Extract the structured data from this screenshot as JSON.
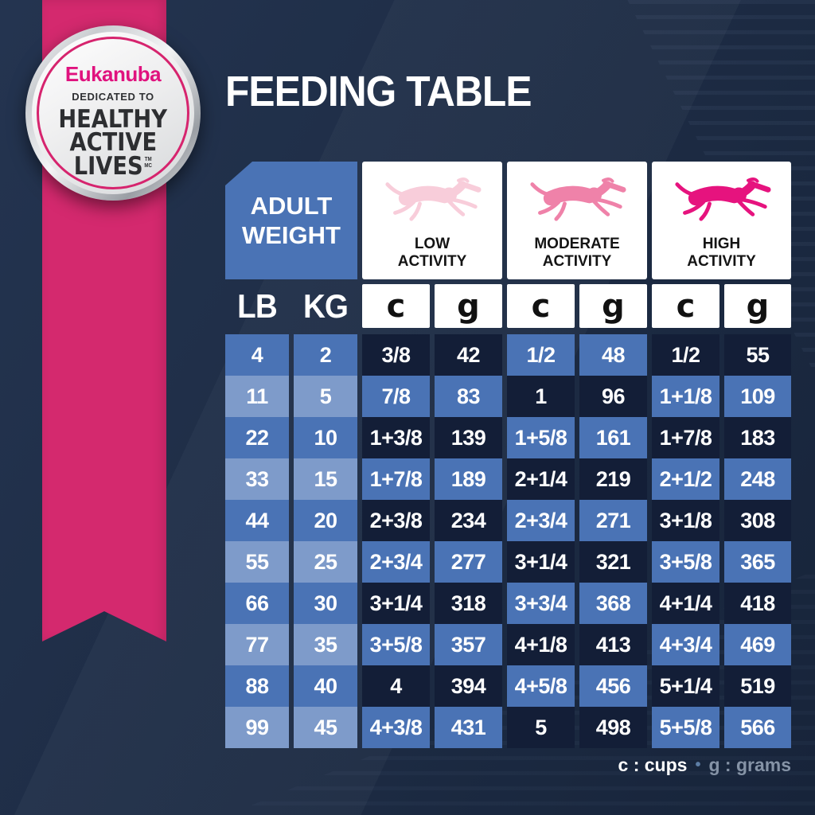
{
  "title": "FEEDING TABLE",
  "badge": {
    "brand": "Eukanuba",
    "tagline": "DEDICATED TO",
    "line1": "HEALTHY",
    "line2": "ACTIVE",
    "line3": "LIVES",
    "tm1": "TM",
    "tm2": "MC"
  },
  "table": {
    "adult_weight_label": "ADULT WEIGHT",
    "activities": [
      {
        "label": "LOW ACTIVITY",
        "dog_color": "#f8cdda"
      },
      {
        "label": "MODERATE ACTIVITY",
        "dog_color": "#ef82a9"
      },
      {
        "label": "HIGH ACTIVITY",
        "dog_color": "#e6137e"
      }
    ]
  },
  "chart_data": {
    "type": "table",
    "title": "FEEDING TABLE",
    "column_groups": [
      "ADULT WEIGHT",
      "LOW ACTIVITY",
      "MODERATE ACTIVITY",
      "HIGH ACTIVITY"
    ],
    "columns": [
      "LB",
      "KG",
      "c",
      "g",
      "c",
      "g",
      "c",
      "g"
    ],
    "rows": [
      [
        "4",
        "2",
        "3/8",
        "42",
        "1/2",
        "48",
        "1/2",
        "55"
      ],
      [
        "11",
        "5",
        "7/8",
        "83",
        "1",
        "96",
        "1+1/8",
        "109"
      ],
      [
        "22",
        "10",
        "1+3/8",
        "139",
        "1+5/8",
        "161",
        "1+7/8",
        "183"
      ],
      [
        "33",
        "15",
        "1+7/8",
        "189",
        "2+1/4",
        "219",
        "2+1/2",
        "248"
      ],
      [
        "44",
        "20",
        "2+3/8",
        "234",
        "2+3/4",
        "271",
        "3+1/8",
        "308"
      ],
      [
        "55",
        "25",
        "2+3/4",
        "277",
        "3+1/4",
        "321",
        "3+5/8",
        "365"
      ],
      [
        "66",
        "30",
        "3+1/4",
        "318",
        "3+3/4",
        "368",
        "4+1/4",
        "418"
      ],
      [
        "77",
        "35",
        "3+5/8",
        "357",
        "4+1/8",
        "413",
        "4+3/4",
        "469"
      ],
      [
        "88",
        "40",
        "4",
        "394",
        "4+5/8",
        "456",
        "5+1/4",
        "519"
      ],
      [
        "99",
        "45",
        "4+3/8",
        "431",
        "5",
        "498",
        "5+5/8",
        "566"
      ]
    ],
    "units_note": "c : cups, g : grams"
  },
  "legend": {
    "cups": "c : cups",
    "separator": "•",
    "grams": "g : grams"
  },
  "colors": {
    "background": "#1e2d46",
    "ribbon": "#d4296e",
    "cell_blue": "#4a73b5",
    "cell_light_blue": "#7e9bca",
    "cell_dark": "#131e37",
    "brand_pink": "#e0127e"
  }
}
